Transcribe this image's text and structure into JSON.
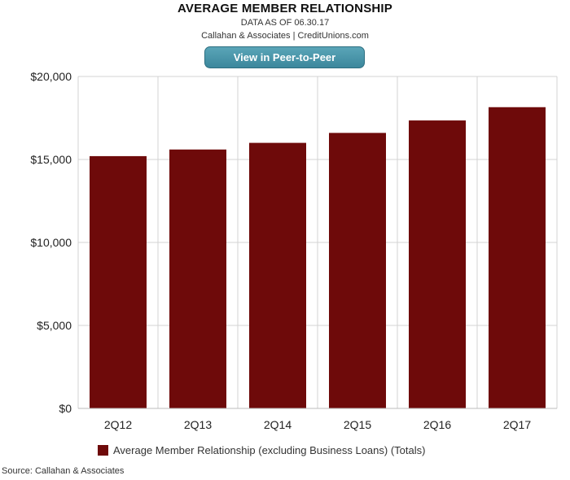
{
  "header": {
    "title": "AVERAGE MEMBER RELATIONSHIP",
    "as_of": "DATA AS OF 06.30.17",
    "credit": "Callahan & Associates | CreditUnions.com"
  },
  "button": {
    "label": "View in Peer-to-Peer"
  },
  "source": "Source: Callahan & Associates",
  "colors": {
    "bar": "#6e0a0a",
    "grid": "#d3d3d3",
    "button": "#4a97ab"
  },
  "chart_data": {
    "type": "bar",
    "categories": [
      "2Q12",
      "2Q13",
      "2Q14",
      "2Q15",
      "2Q16",
      "2Q17"
    ],
    "series": [
      {
        "name": "Average Member Relationship (excluding Business Loans) (Totals)",
        "values": [
          15200,
          15600,
          16000,
          16600,
          17350,
          18150
        ]
      }
    ],
    "title": "AVERAGE MEMBER RELATIONSHIP",
    "ylim": [
      0,
      20000
    ],
    "yticks": [
      0,
      5000,
      10000,
      15000,
      20000
    ],
    "ytick_labels": [
      "$0",
      "$5,000",
      "$10,000",
      "$15,000",
      "$20,000"
    ],
    "grid": true,
    "legend": "bottom"
  }
}
